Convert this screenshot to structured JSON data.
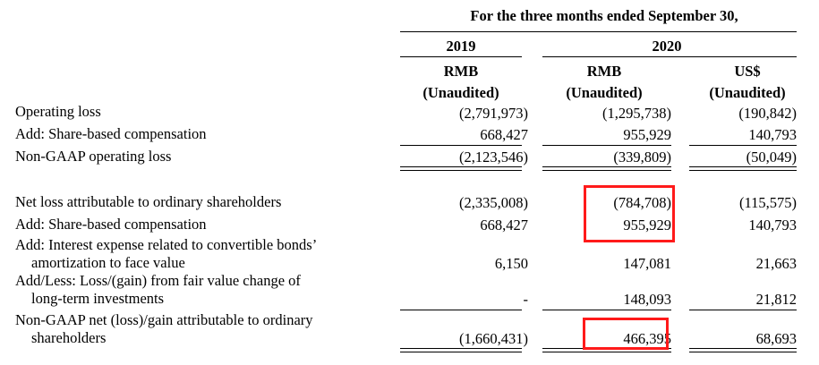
{
  "header": {
    "period": "For the three months ended September 30,",
    "years": [
      "2019",
      "2020"
    ],
    "columns": [
      {
        "currency": "RMB",
        "status": "(Unaudited)"
      },
      {
        "currency": "RMB",
        "status": "(Unaudited)"
      },
      {
        "currency": "US$",
        "status": "(Unaudited)"
      }
    ]
  },
  "rows": [
    {
      "label": "Operating loss",
      "v": [
        "(2,791,973)",
        "(1,295,738)",
        "(190,842)"
      ]
    },
    {
      "label": "Add: Share-based compensation",
      "v": [
        "668,427",
        "955,929",
        "140,793"
      ]
    },
    {
      "label": "Non-GAAP operating loss",
      "v": [
        "(2,123,546)",
        "(339,809)",
        "(50,049)"
      ]
    },
    {
      "label": "Net loss attributable to ordinary shareholders",
      "v": [
        "(2,335,008)",
        "(784,708)",
        "(115,575)"
      ]
    },
    {
      "label": "Add: Share-based compensation",
      "v": [
        "668,427",
        "955,929",
        "140,793"
      ]
    },
    {
      "label": "Add: Interest expense related to convertible bonds’",
      "label2": "amortization to face value",
      "v": [
        "6,150",
        "147,081",
        "21,663"
      ]
    },
    {
      "label": "Add/Less: Loss/(gain) from fair value change of",
      "label2": "long-term investments",
      "v": [
        "-",
        "148,093",
        "21,812"
      ]
    },
    {
      "label": "Non-GAAP net (loss)/gain attributable to ordinary",
      "label2": "shareholders",
      "v": [
        "(1,660,431)",
        "466,395",
        "68,693"
      ]
    }
  ],
  "highlight_color": "#ff1a1a"
}
